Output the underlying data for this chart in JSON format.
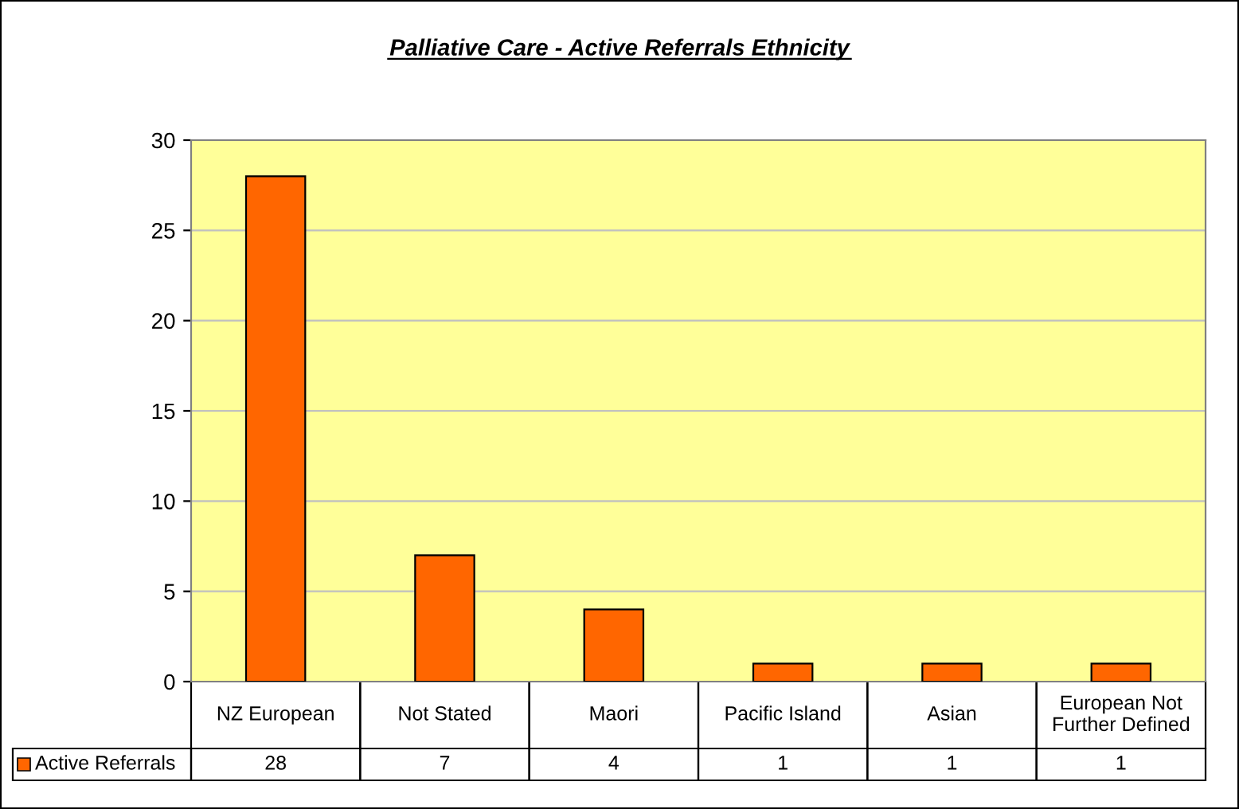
{
  "chart_data": {
    "type": "bar",
    "title": "Palliative Care - Active Referrals Ethnicity",
    "categories": [
      "NZ European",
      "Not Stated",
      "Maori",
      "Pacific Island",
      "Asian",
      "European Not Further Defined"
    ],
    "series": [
      {
        "name": "Active Referrals",
        "color": "#ff6600",
        "values": [
          28,
          7,
          4,
          1,
          1,
          1
        ]
      }
    ],
    "ylim": [
      0,
      30
    ],
    "yticks": [
      0,
      5,
      10,
      15,
      20,
      25,
      30
    ],
    "grid": "y",
    "data_labels": true
  }
}
